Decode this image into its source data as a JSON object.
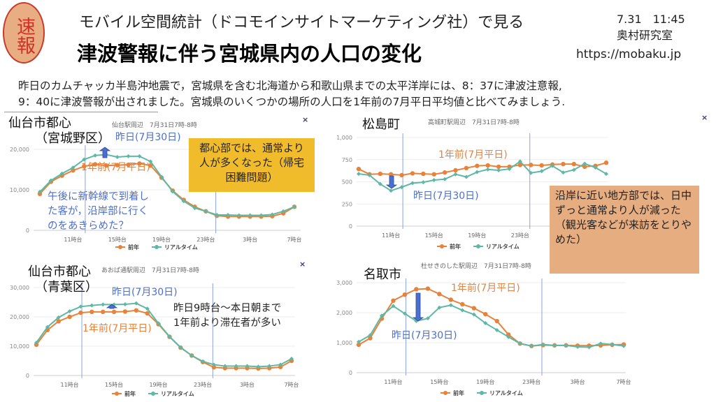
{
  "header": {
    "badge": "速報",
    "subtitle": "モバイル空間統計（ドコモインサイトマーケティング社）で見る",
    "title": "津波警報に伴う宮城県内の人口の変化",
    "date": "7.31　11:45",
    "lab": "奥村研究室",
    "url": "https://mobaku.jp"
  },
  "intro": [
    "昨日のカムチャッカ半島沖地震で，宮城県を含む北海道から和歌山県までの太平洋岸には、8：37に津波注意報,",
    "9：40に津波警報が出されました。宮城県のいくつかの場所の人口を1年前の7月平日平均値と比べてみましょう."
  ],
  "close_label": "×",
  "colors": {
    "prev": "#e8823a",
    "real": "#5fb8a6",
    "annot_blue": "#4a6fd0",
    "yellow_box": "#f0bc2c",
    "brown_box": "#e6ad80"
  },
  "annotations": {
    "c1": {
      "title1": "仙台市都心",
      "title2": "（宮城野区）",
      "yesterday": "昨日(7月30日)",
      "lastyear": "1年前(7月平日)",
      "note": [
        "午後に新幹線で到着し",
        "た客が，沿岸部に行く",
        "のをあきらめた？"
      ],
      "box": "都心部では、通常より人が多くなった（帰宅困難問題）"
    },
    "c2": {
      "title1": "松島町",
      "lastyear": "1年前(7月平日)",
      "yesterday": "昨日(7月30日)",
      "box": "沿岸に近い地方部では、日中ずっと通常より人が減った（観光客などが来訪をとりやめた）"
    },
    "c3": {
      "title1": "仙台市都心",
      "title2": "（青葉区）",
      "yesterday": "昨日(7月30日)",
      "lastyear": "1年前(7月平日)",
      "note": [
        "昨日9時台～本日朝まで",
        "1年前より滞在者が多い"
      ]
    },
    "c4": {
      "title1": "名取市",
      "lastyear": "1年前(7月平日)",
      "yesterday": "昨日(7月30日)"
    }
  },
  "chart_data": [
    {
      "type": "line",
      "title": "仙台駅周辺　7月31日7時-8時",
      "x": [
        "8",
        "9",
        "10",
        "11",
        "12",
        "13",
        "14",
        "15",
        "16",
        "17",
        "18",
        "19",
        "20",
        "21",
        "22",
        "23",
        "0",
        "1",
        "2",
        "3",
        "4",
        "5",
        "6",
        "7"
      ],
      "xticks": [
        "11時台",
        "15時台",
        "19時台",
        "23時台",
        "3時台",
        "7時台"
      ],
      "yticks": [
        "0",
        "10,000",
        "20,000"
      ],
      "ylim": [
        0,
        20000
      ],
      "legend": [
        "前年",
        "リアルタイム"
      ],
      "legend_position": "bottom",
      "markers_at_hour_index": [
        4.1,
        15.9
      ],
      "series": [
        {
          "name": "前年",
          "values": [
            9000,
            12000,
            13500,
            14800,
            15800,
            16300,
            16000,
            16100,
            16200,
            16500,
            16000,
            13000,
            9800,
            7500,
            5800,
            4700,
            3600,
            3400,
            3400,
            3400,
            3400,
            3500,
            4200,
            5800
          ]
        },
        {
          "name": "リアルタイム",
          "values": [
            9500,
            12300,
            14000,
            15500,
            17500,
            18500,
            18700,
            18100,
            18300,
            18300,
            17000,
            13200,
            9600,
            7200,
            5500,
            4700,
            3800,
            3800,
            3700,
            3700,
            3700,
            3900,
            4700,
            5800
          ]
        }
      ]
    },
    {
      "type": "line",
      "title": "高城町駅周辺　7月31日7時-8時",
      "x": [
        "8",
        "9",
        "10",
        "11",
        "12",
        "13",
        "14",
        "15",
        "16",
        "17",
        "18",
        "19",
        "20",
        "21",
        "22",
        "23",
        "0",
        "1",
        "2",
        "3",
        "4",
        "5",
        "6",
        "7"
      ],
      "xticks": [
        "11時台",
        "15時台",
        "19時台",
        "23時台",
        "3時台",
        "7時台"
      ],
      "yticks": [
        "0",
        "250",
        "500",
        "750",
        "1,000"
      ],
      "ylim": [
        0,
        1000
      ],
      "legend": [
        "前年",
        "リアルタイム"
      ],
      "legend_position": "bottom",
      "markers_at_hour_index": [
        4.1,
        15.9
      ],
      "series": [
        {
          "name": "前年",
          "values": [
            645,
            585,
            590,
            585,
            575,
            595,
            590,
            585,
            605,
            630,
            655,
            680,
            685,
            670,
            670,
            690,
            690,
            685,
            695,
            700,
            700,
            670,
            680,
            715
          ]
        },
        {
          "name": "リアルタイム",
          "values": [
            590,
            575,
            475,
            400,
            440,
            485,
            495,
            520,
            530,
            585,
            555,
            610,
            640,
            630,
            645,
            730,
            600,
            620,
            680,
            605,
            635,
            705,
            660,
            590
          ]
        }
      ]
    },
    {
      "type": "line",
      "title": "あおば通駅周辺　7月31日7時-8時",
      "x": [
        "8",
        "9",
        "10",
        "11",
        "12",
        "13",
        "14",
        "15",
        "16",
        "17",
        "18",
        "19",
        "20",
        "21",
        "22",
        "23",
        "0",
        "1",
        "2",
        "3",
        "4",
        "5",
        "6",
        "7"
      ],
      "xticks": [
        "11時台",
        "15時台",
        "19時台",
        "23時台",
        "3時台",
        "7時台"
      ],
      "yticks": [
        "0",
        "10,000",
        "20,000",
        "30,000"
      ],
      "ylim": [
        0,
        30000
      ],
      "legend": [
        "前年",
        "リアルタイム"
      ],
      "legend_position": "bottom",
      "markers_at_hour_index": [
        4.1,
        15.9
      ],
      "series": [
        {
          "name": "前年",
          "values": [
            10500,
            15500,
            18500,
            20000,
            21400,
            21700,
            21700,
            21700,
            21800,
            22200,
            21200,
            17500,
            13200,
            9500,
            6800,
            4600,
            2800,
            2500,
            2500,
            2500,
            2400,
            2500,
            2900,
            5000
          ]
        },
        {
          "name": "リアルタイム",
          "values": [
            11200,
            16500,
            19800,
            21900,
            23500,
            23900,
            24200,
            24200,
            24300,
            24600,
            22800,
            17800,
            13300,
            9600,
            6800,
            4800,
            3700,
            3200,
            3200,
            3200,
            3000,
            3200,
            3700,
            5700
          ]
        }
      ]
    },
    {
      "type": "line",
      "title": "杜せきのした駅周辺　7月31日7時-8時",
      "x": [
        "8",
        "9",
        "10",
        "11",
        "12",
        "13",
        "14",
        "15",
        "16",
        "17",
        "18",
        "19",
        "20",
        "21",
        "22",
        "23",
        "0",
        "1",
        "2",
        "3",
        "4",
        "5",
        "6",
        "7"
      ],
      "xticks": [
        "11時台",
        "15時台",
        "19時台",
        "23時台",
        "3時台",
        "7時台"
      ],
      "yticks": [
        "0",
        "1,000",
        "2,000",
        "3,000"
      ],
      "ylim": [
        0,
        3000
      ],
      "legend": [
        "前年",
        "リアルタイム"
      ],
      "legend_position": "bottom",
      "markers_at_hour_index": [
        4.1,
        15.9
      ],
      "series": [
        {
          "name": "前年",
          "values": [
            930,
            1150,
            1800,
            2400,
            2600,
            2780,
            2800,
            2620,
            2430,
            2280,
            2150,
            1950,
            1720,
            1270,
            970,
            890,
            920,
            910,
            910,
            900,
            900,
            910,
            930,
            940
          ]
        },
        {
          "name": "リアルタイム",
          "values": [
            1030,
            1250,
            1900,
            2220,
            1970,
            1720,
            1810,
            2170,
            2250,
            2080,
            1940,
            1650,
            1420,
            1190,
            970,
            890,
            940,
            910,
            910,
            860,
            850,
            970,
            940,
            890
          ]
        }
      ]
    }
  ]
}
